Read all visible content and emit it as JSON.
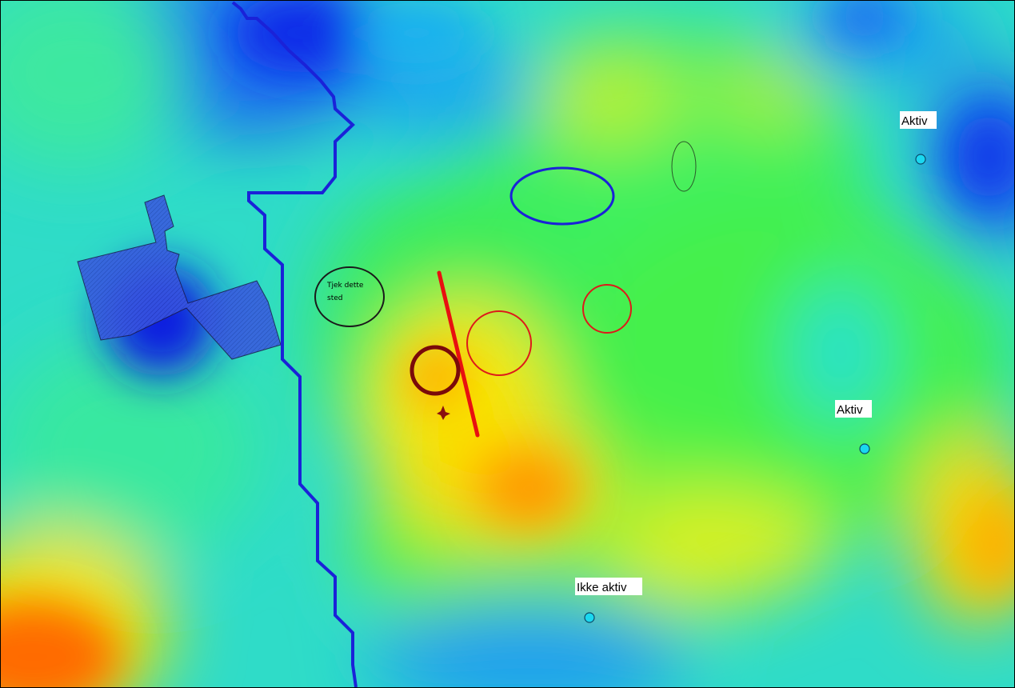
{
  "map": {
    "labels": {
      "tjek_line1": "Tjek dette",
      "tjek_line2": "sted",
      "well_1": "Aktiv",
      "well_2": "Aktiv",
      "well_3": "Ikke aktiv"
    },
    "legend_colors": {
      "low": "#0a2ee8",
      "mid_low": "#1ad8e6",
      "mid": "#22ee55",
      "mid_high": "#f2f200",
      "high": "#ff5a00",
      "boundary_line": "#1a22d8",
      "fault_line": "#e81010",
      "marker_circle_red": "#dd1a1a",
      "marker_circle_darkred": "#7a0a0a",
      "marker_circle_blue": "#1a22d8",
      "well_marker": "#1ad8f0"
    }
  }
}
